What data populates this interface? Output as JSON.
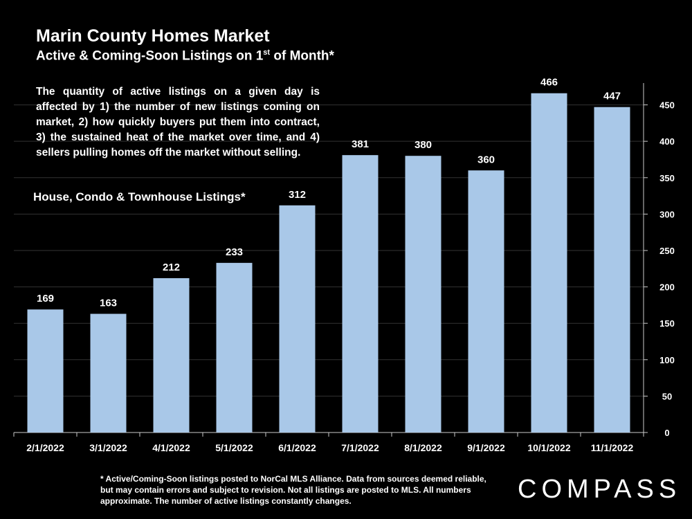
{
  "header": {
    "title": "Marin County Homes Market",
    "subtitle_pre": "Active & Coming-Soon Listings on 1",
    "subtitle_sup": "st",
    "subtitle_post": " of Month*"
  },
  "description": "The quantity of active listings on a given day is affected by 1) the number of new listings coming on market, 2) how quickly buyers put them into contract, 3) the sustained heat of the market over time, and 4) sellers pulling homes off the market without selling.",
  "series_label": "House, Condo & Townhouse Listings*",
  "footnote": "* Active/Coming-Soon listings posted to NorCal MLS Alliance.  Data from sources deemed reliable, but may contain errors and subject to revision.  Not all listings are posted to MLS. All numbers approximate. The number of active listings constantly changes.",
  "brand": "COMPASS",
  "colors": {
    "background": "#000000",
    "bar": "#a9c8e8",
    "text": "#ffffff",
    "grid": "#333333"
  },
  "chart_data": {
    "type": "bar",
    "title": "Marin County Homes Market",
    "subtitle": "Active & Coming-Soon Listings on 1st of Month*",
    "categories": [
      "2/1/2022",
      "3/1/2022",
      "4/1/2022",
      "5/1/2022",
      "6/1/2022",
      "7/1/2022",
      "8/1/2022",
      "9/1/2022",
      "10/1/2022",
      "11/1/2022"
    ],
    "series": [
      {
        "name": "House, Condo & Townhouse Listings*",
        "values": [
          169,
          163,
          212,
          233,
          312,
          381,
          380,
          360,
          466,
          447
        ]
      }
    ],
    "ylim": [
      0,
      480
    ],
    "yticks": [
      0,
      50,
      100,
      150,
      200,
      250,
      300,
      350,
      400,
      450
    ],
    "y_axis_side": "right",
    "grid": true,
    "data_labels": true
  }
}
